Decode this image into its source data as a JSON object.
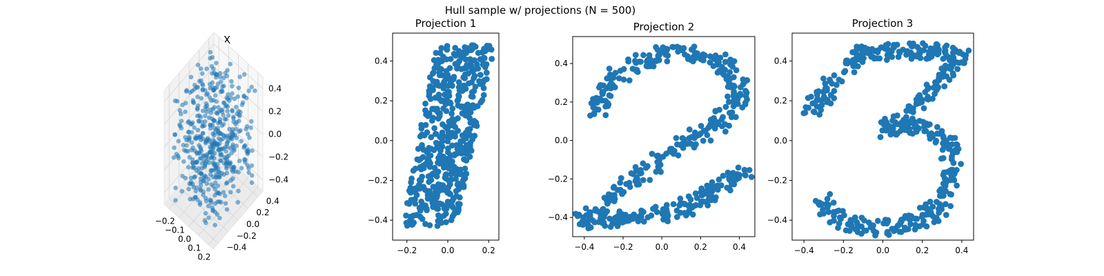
{
  "figure": {
    "title": "Hull sample w/ projections (N = 500)"
  },
  "colors": {
    "marker": "#1f77b4",
    "pane": "#f2f2f2",
    "grid": "#d9d9d9"
  },
  "chart_data": [
    {
      "type": "scatter",
      "title": "X",
      "dimensions": 3,
      "series_color": "#1f77b4",
      "x_ticks": [
        -0.2,
        -0.1,
        0.0,
        0.1,
        0.2
      ],
      "y_ticks": [
        -0.4,
        -0.2,
        0.0,
        0.2,
        0.4
      ],
      "z_ticks": [
        -0.4,
        -0.2,
        0.0,
        0.2,
        0.4
      ],
      "x_tick_labels": [
        "−0.2",
        "−0.1",
        "0.0",
        "0.1",
        "0.2"
      ],
      "y_tick_labels": [
        "−0.4",
        "−0.2",
        "0.0",
        "0.2",
        "0.4"
      ],
      "z_tick_labels": [
        "−0.4",
        "−0.2",
        "0.0",
        "0.2",
        "0.4"
      ],
      "xlim": [
        -0.25,
        0.25
      ],
      "ylim": [
        -0.5,
        0.5
      ],
      "zlim": [
        -0.5,
        0.5
      ],
      "grid": true,
      "n_points": 500
    },
    {
      "type": "scatter",
      "title": "Projection 1",
      "series_color": "#1f77b4",
      "xlim": [
        -0.27,
        0.25
      ],
      "ylim": [
        -0.5,
        0.54
      ],
      "x_ticks": [
        -0.2,
        0.0,
        0.2
      ],
      "x_tick_labels": [
        "−0.2",
        "0.0",
        "0.2"
      ],
      "y_ticks": [
        -0.4,
        -0.2,
        0.0,
        0.2,
        0.4
      ],
      "y_tick_labels": [
        "−0.4",
        "−0.2",
        "0.0",
        "0.2",
        "0.4"
      ],
      "grid": false,
      "n_points": 500
    },
    {
      "type": "scatter",
      "title": "Projection 2",
      "series_color": "#1f77b4",
      "xlim": [
        -0.46,
        0.48
      ],
      "ylim": [
        -0.5,
        0.54
      ],
      "x_ticks": [
        -0.4,
        -0.2,
        0.0,
        0.2,
        0.4
      ],
      "x_tick_labels": [
        "−0.4",
        "−0.2",
        "0.0",
        "0.2",
        "0.4"
      ],
      "y_ticks": [
        -0.4,
        -0.2,
        0.0,
        0.2,
        0.4
      ],
      "y_tick_labels": [
        "−0.4",
        "−0.2",
        "0.0",
        "0.2",
        "0.4"
      ],
      "grid": false,
      "n_points": 500
    },
    {
      "type": "scatter",
      "title": "Projection 3",
      "series_color": "#1f77b4",
      "xlim": [
        -0.46,
        0.46
      ],
      "ylim": [
        -0.5,
        0.54
      ],
      "x_ticks": [
        -0.4,
        -0.2,
        0.0,
        0.2,
        0.4
      ],
      "x_tick_labels": [
        "−0.4",
        "−0.2",
        "0.0",
        "0.2",
        "0.4"
      ],
      "y_ticks": [
        -0.4,
        -0.2,
        0.0,
        0.2,
        0.4
      ],
      "y_tick_labels": [
        "−0.4",
        "−0.2",
        "0.0",
        "0.2",
        "0.4"
      ],
      "grid": false,
      "n_points": 500
    }
  ]
}
